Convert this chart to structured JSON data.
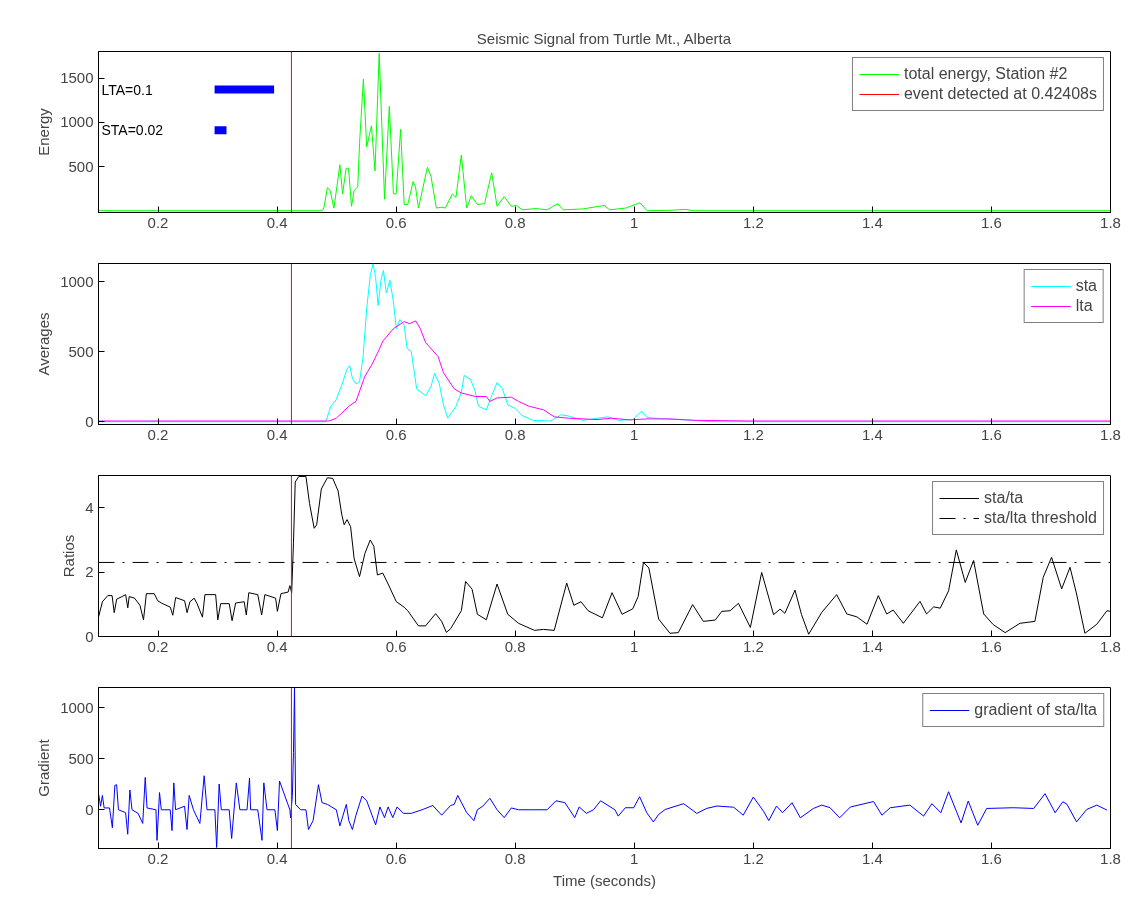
{
  "chart_data": [
    {
      "type": "line",
      "title": "Seismic Signal from Turtle Mt., Alberta",
      "ylabel": "Energy",
      "xlim": [
        0.1,
        1.8
      ],
      "ylim": [
        -20,
        1800
      ],
      "xticks": [
        0.2,
        0.4,
        0.6,
        0.8,
        1,
        1.2,
        1.4,
        1.6,
        1.8
      ],
      "yticks": [
        500,
        1000,
        1500
      ],
      "grid": false,
      "legend": "top right",
      "annotations": [
        "LTA=0.1",
        "STA=0.02"
      ],
      "series": [
        {
          "name": "total energy, Station #2",
          "color": "#00ff00",
          "x": [
            0.1,
            0.4755,
            0.4785,
            0.4845,
            0.489,
            0.4955,
            0.5055,
            0.51,
            0.516,
            0.52,
            0.525,
            0.5295,
            0.5355,
            0.5385,
            0.545,
            0.5505,
            0.5585,
            0.5645,
            0.5715,
            0.5805,
            0.5885,
            0.5955,
            0.6,
            0.6075,
            0.6135,
            0.6195,
            0.6285,
            0.6325,
            0.6375,
            0.6525,
            0.6585,
            0.6675,
            0.6765,
            0.6825,
            0.6945,
            0.7005,
            0.7095,
            0.7185,
            0.7263,
            0.7365,
            0.7485,
            0.7605,
            0.7695,
            0.7815,
            0.7935,
            0.8025,
            0.8115,
            0.8355,
            0.8535,
            0.8715,
            0.8805,
            0.9135,
            0.9495,
            0.9585,
            0.9855,
            1.0095,
            1.0215,
            1.06,
            1.085,
            1.1,
            1.8
          ],
          "values": [
            0,
            0,
            30,
            260,
            230,
            30,
            520,
            190,
            480,
            480,
            50,
            230,
            270,
            760,
            1490,
            720,
            960,
            450,
            1780,
            130,
            1180,
            190,
            190,
            920,
            70,
            70,
            330,
            270,
            30,
            490,
            390,
            30,
            40,
            30,
            190,
            150,
            630,
            30,
            170,
            70,
            80,
            430,
            50,
            160,
            50,
            60,
            10,
            25,
            10,
            80,
            10,
            20,
            60,
            10,
            30,
            90,
            0,
            5,
            15,
            0,
            0
          ]
        },
        {
          "color": "#0000ff",
          "x": [
            0.295,
            0.395
          ],
          "values": [
            1370,
            1370
          ]
        },
        {
          "color": "#0000ff",
          "x": [
            0.295,
            0.315
          ],
          "values": [
            910,
            910
          ]
        },
        {
          "name": "event detected at 0.42408s",
          "color": "#ff0000",
          "x": [
            0.42408,
            0.42408
          ],
          "values": [
            -20,
            1800
          ]
        }
      ]
    },
    {
      "type": "line",
      "ylabel": "Averages",
      "xlim": [
        0.1,
        1.8
      ],
      "ylim": [
        -20,
        1130
      ],
      "xticks": [
        0.2,
        0.4,
        0.6,
        0.8,
        1,
        1.2,
        1.4,
        1.6,
        1.8
      ],
      "yticks": [
        0,
        500,
        1000
      ],
      "grid": false,
      "legend": "top right",
      "series": [
        {
          "name": "sta",
          "color": "#00ffff",
          "x": [
            0.1,
            0.4815,
            0.4905,
            0.4995,
            0.5085,
            0.5175,
            0.522,
            0.5265,
            0.5325,
            0.5385,
            0.5445,
            0.5505,
            0.5565,
            0.5613,
            0.5655,
            0.5697,
            0.5745,
            0.5787,
            0.5835,
            0.5895,
            0.5955,
            0.6003,
            0.6063,
            0.6135,
            0.6183,
            0.6255,
            0.6345,
            0.6495,
            0.6585,
            0.6645,
            0.6723,
            0.6795,
            0.6867,
            0.7005,
            0.7095,
            0.7143,
            0.7245,
            0.7323,
            0.7383,
            0.7515,
            0.7605,
            0.7695,
            0.7785,
            0.7875,
            0.7995,
            0.8115,
            0.8295,
            0.8595,
            0.8775,
            0.8895,
            0.9135,
            0.9555,
            0.9735,
            0.9975,
            1.0125,
            1.0215,
            1.05,
            1.1,
            1.13,
            1.8
          ],
          "values": [
            0,
            0,
            110,
            160,
            260,
            375,
            400,
            310,
            270,
            285,
            465,
            805,
            1045,
            1128,
            1030,
            830,
            1010,
            1080,
            920,
            1010,
            855,
            665,
            730,
            690,
            525,
            500,
            235,
            185,
            250,
            345,
            275,
            120,
            25,
            110,
            210,
            330,
            305,
            225,
            110,
            85,
            185,
            280,
            235,
            120,
            95,
            45,
            10,
            5,
            50,
            40,
            10,
            35,
            10,
            15,
            75,
            30,
            20,
            10,
            0,
            0
          ]
        },
        {
          "name": "lta",
          "color": "#ff00ff",
          "x": [
            0.1,
            0.4875,
            0.4995,
            0.5205,
            0.5325,
            0.5475,
            0.5595,
            0.5715,
            0.5775,
            0.5955,
            0.6135,
            0.6225,
            0.6327,
            0.6405,
            0.6495,
            0.6705,
            0.6795,
            0.6975,
            0.7095,
            0.7335,
            0.7515,
            0.7575,
            0.7695,
            0.7935,
            0.8055,
            0.8235,
            0.8475,
            0.8655,
            0.8895,
            0.9375,
            0.9615,
            0.9915,
            1.0215,
            1.06,
            1.1,
            1.2,
            1.8
          ],
          "values": [
            5,
            5,
            25,
            110,
            145,
            325,
            410,
            515,
            575,
            665,
            715,
            700,
            720,
            665,
            565,
            465,
            350,
            235,
            205,
            180,
            180,
            145,
            170,
            175,
            145,
            110,
            85,
            35,
            25,
            15,
            25,
            13,
            20,
            20,
            10,
            5,
            5
          ]
        }
      ],
      "ref_lines": [
        {
          "axis": "x",
          "value": 0.42408,
          "color": "#ff0000"
        }
      ]
    },
    {
      "type": "line",
      "ylabel": "Ratios",
      "xlim": [
        0.1,
        1.8
      ],
      "ylim": [
        0,
        5
      ],
      "xticks": [
        0.2,
        0.4,
        0.6,
        0.8,
        1,
        1.2,
        1.4,
        1.6,
        1.8
      ],
      "yticks": [
        0,
        2,
        4
      ],
      "grid": false,
      "legend": "top right",
      "series": [
        {
          "name": "sta/ta",
          "color": "#000000",
          "x": [
            0.1,
            0.1066,
            0.1156,
            0.1228,
            0.1264,
            0.1306,
            0.1396,
            0.1456,
            0.1492,
            0.1516,
            0.1606,
            0.1696,
            0.1756,
            0.1804,
            0.1936,
            0.1996,
            0.2056,
            0.2206,
            0.2248,
            0.2296,
            0.2446,
            0.2488,
            0.2536,
            0.2608,
            0.2656,
            0.2746,
            0.2788,
            0.2968,
            0.3004,
            0.3052,
            0.3196,
            0.3244,
            0.3304,
            0.3447,
            0.3483,
            0.3525,
            0.3675,
            0.3741,
            0.3795,
            0.3975,
            0.4005,
            0.4065,
            0.4185,
            0.4215,
            0.4245,
            0.4275,
            0.4305,
            0.4365,
            0.4485,
            0.4545,
            0.4623,
            0.4665,
            0.4743,
            0.4845,
            0.4935,
            0.5025,
            0.5085,
            0.5127,
            0.5175,
            0.5235,
            0.5295,
            0.5385,
            0.5475,
            0.5565,
            0.5625,
            0.5685,
            0.5775,
            0.5865,
            0.6003,
            0.6135,
            0.6195,
            0.6375,
            0.6495,
            0.6663,
            0.6765,
            0.6843,
            0.6915,
            0.7095,
            0.7167,
            0.7275,
            0.7365,
            0.7515,
            0.7695,
            0.7875,
            0.8055,
            0.8325,
            0.8475,
            0.8655,
            0.8865,
            0.8985,
            0.9105,
            0.9225,
            0.9465,
            0.9627,
            0.9795,
            0.9975,
            1.0065,
            1.0155,
            1.0245,
            1.041,
            1.06,
            1.074,
            1.098,
            1.116,
            1.136,
            1.147,
            1.161,
            1.175,
            1.195,
            1.214,
            1.234,
            1.245,
            1.253,
            1.27,
            1.281,
            1.293,
            1.315,
            1.34,
            1.357,
            1.374,
            1.391,
            1.41,
            1.424,
            1.435,
            1.452,
            1.48,
            1.491,
            1.503,
            1.514,
            1.528,
            1.541,
            1.556,
            1.57,
            1.587,
            1.603,
            1.623,
            1.648,
            1.673,
            1.687,
            1.701,
            1.718,
            1.732,
            1.743,
            1.757,
            1.777,
            1.794,
            1.8
          ],
          "values": [
            0.6,
            1.08,
            1.27,
            1.27,
            0.74,
            1.16,
            1.24,
            1.3,
            0.89,
            1.24,
            1.19,
            0.97,
            0.52,
            1.33,
            1.33,
            1.11,
            1.04,
            0.91,
            0.66,
            1.21,
            1.11,
            0.74,
            1.08,
            1.19,
            1.02,
            0.6,
            1.3,
            1.3,
            0.52,
            1.02,
            1.02,
            0.49,
            1.04,
            1.08,
            0.67,
            1.36,
            1.3,
            0.67,
            1.3,
            1.19,
            0.78,
            1.33,
            1.38,
            1.58,
            1.36,
            2.91,
            4.8,
            4.97,
            4.97,
            4.13,
            3.36,
            3.47,
            4.58,
            4.93,
            4.91,
            4.52,
            3.8,
            3.47,
            3.63,
            3.41,
            2.41,
            1.86,
            2.58,
            3.0,
            2.8,
            1.91,
            1.97,
            1.63,
            1.08,
            0.91,
            0.8,
            0.33,
            0.33,
            0.71,
            0.47,
            0.13,
            0.24,
            0.8,
            1.71,
            1.47,
            0.69,
            0.52,
            1.63,
            0.69,
            0.41,
            0.19,
            0.22,
            0.19,
            1.66,
            0.97,
            1.08,
            0.8,
            0.58,
            1.36,
            0.69,
            0.86,
            1.24,
            2.3,
            2.13,
            0.54,
            0.1,
            0.12,
            0.99,
            0.47,
            0.51,
            0.78,
            0.8,
            1.03,
            0.28,
            1.99,
            0.68,
            0.85,
            0.72,
            1.44,
            0.68,
            0.07,
            0.75,
            1.3,
            0.7,
            0.61,
            0.38,
            1.27,
            0.7,
            0.82,
            0.41,
            1.09,
            0.7,
            0.92,
            0.88,
            1.42,
            2.69,
            1.68,
            2.36,
            0.7,
            0.37,
            0.12,
            0.41,
            0.47,
            1.84,
            2.46,
            1.48,
            2.15,
            1.32,
            0.1,
            0.38,
            0.8,
            0.78
          ]
        }
      ],
      "ref_lines": [
        {
          "axis": "x",
          "value": 0.42408,
          "color": "#ff0000"
        },
        {
          "axis": "y",
          "value": 2.3,
          "label": "sta/lta threshold",
          "color": "#000000",
          "line_style": "dashed"
        }
      ]
    },
    {
      "type": "line",
      "ylabel": "Gradient",
      "xlabel": "Time (seconds)",
      "xlim": [
        0.1,
        1.8
      ],
      "ylim": [
        -380,
        1200
      ],
      "xticks": [
        0.2,
        0.4,
        0.6,
        0.8,
        1,
        1.2,
        1.4,
        1.6,
        1.8
      ],
      "yticks": [
        0,
        500,
        1000
      ],
      "grid": false,
      "legend": "top right",
      "series": [
        {
          "name": "gradient of sta/lta",
          "color": "#0000ff",
          "x": [
            0.1,
            0.1035,
            0.1065,
            0.1095,
            0.1185,
            0.1233,
            0.1275,
            0.1305,
            0.1335,
            0.1455,
            0.1491,
            0.1527,
            0.1563,
            0.1665,
            0.1743,
            0.1785,
            0.1815,
            0.1965,
            0.1983,
            0.2025,
            0.2055,
            0.2205,
            0.2235,
            0.2265,
            0.2295,
            0.2445,
            0.2487,
            0.2523,
            0.2595,
            0.2703,
            0.2775,
            0.2823,
            0.2955,
            0.2985,
            0.3027,
            0.3063,
            0.3195,
            0.3237,
            0.3315,
            0.3375,
            0.3495,
            0.3537,
            0.3555,
            0.3675,
            0.3747,
            0.3777,
            0.3831,
            0.3963,
            0.4005,
            0.4041,
            0.4215,
            0.4227,
            0.4257,
            0.4275,
            0.4293,
            0.4311,
            0.4395,
            0.4485,
            0.4527,
            0.4605,
            0.4695,
            0.4755,
            0.4845,
            0.4995,
            0.5055,
            0.5163,
            0.5205,
            0.5265,
            0.5325,
            0.5427,
            0.5505,
            0.5595,
            0.5655,
            0.5727,
            0.5805,
            0.5865,
            0.5943,
            0.6015,
            0.6123,
            0.6255,
            0.6435,
            0.6615,
            0.6765,
            0.6915,
            0.6975,
            0.7035,
            0.7185,
            0.7305,
            0.7365,
            0.7455,
            0.7575,
            0.7695,
            0.7815,
            0.7935,
            0.8055,
            0.8235,
            0.8535,
            0.8685,
            0.8835,
            0.9,
            0.9075,
            0.9195,
            0.9315,
            0.9435,
            0.9675,
            0.973,
            0.985,
            0.999,
            1.009,
            1.021,
            1.032,
            1.041,
            1.052,
            1.083,
            1.105,
            1.122,
            1.139,
            1.167,
            1.183,
            1.2,
            1.217,
            1.226,
            1.239,
            1.249,
            1.265,
            1.279,
            1.301,
            1.315,
            1.329,
            1.345,
            1.363,
            1.402,
            1.416,
            1.43,
            1.463,
            1.486,
            1.5,
            1.515,
            1.528,
            1.541,
            1.549,
            1.561,
            1.577,
            1.592,
            1.637,
            1.671,
            1.69,
            1.707,
            1.72,
            1.727,
            1.743,
            1.76,
            1.777,
            1.794
          ],
          "values": [
            160,
            35,
            140,
            18,
            18,
            -176,
            240,
            246,
            0,
            -28,
            -240,
            194,
            0,
            -35,
            -134,
            317,
            18,
            0,
            -300,
            169,
            0,
            0,
            -204,
            264,
            0,
            35,
            -194,
            141,
            0,
            -134,
            334,
            0,
            0,
            -370,
            253,
            0,
            0,
            -282,
            264,
            0,
            0,
            310,
            0,
            0,
            -300,
            264,
            0,
            0,
            -204,
            282,
            0,
            -81,
            141,
            563,
            1200,
            53,
            0,
            0,
            -194,
            -106,
            246,
            70,
            53,
            0,
            -158,
            53,
            -106,
            -194,
            -53,
            134,
            88,
            -53,
            -148,
            28,
            -77,
            28,
            -77,
            28,
            -35,
            -35,
            0,
            42,
            -53,
            42,
            53,
            141,
            -28,
            -106,
            0,
            35,
            113,
            0,
            -77,
            18,
            0,
            0,
            0,
            88,
            70,
            -77,
            28,
            -35,
            0,
            88,
            0,
            -62,
            20,
            20,
            128,
            -29,
            -119,
            -46,
            3,
            60,
            -36,
            14,
            37,
            25,
            -53,
            125,
            -13,
            -106,
            37,
            -29,
            69,
            -79,
            13,
            46,
            20,
            -79,
            27,
            81,
            -53,
            20,
            46,
            -62,
            60,
            -29,
            177,
            -13,
            -129,
            86,
            -152,
            13,
            20,
            13,
            158,
            -29,
            79,
            53,
            -119,
            3,
            46,
            -3
          ]
        }
      ],
      "ref_lines": [
        {
          "axis": "x",
          "value": 0.42408,
          "color": "#ff0000"
        }
      ]
    }
  ]
}
